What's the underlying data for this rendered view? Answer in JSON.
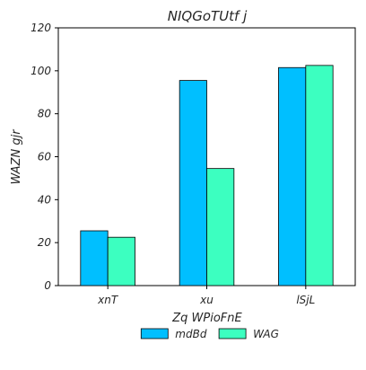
{
  "chart_data": {
    "type": "bar",
    "title": "NIQGoTUtf j",
    "xlabel": "Zq WPioFnE",
    "ylabel": "WAZN gjr",
    "categories": [
      "xnT",
      "xu",
      "lSjL"
    ],
    "series": [
      {
        "name": "mdBd",
        "values": [
          25.5,
          95.5,
          101.5
        ],
        "color": "#00BFFF"
      },
      {
        "name": "WAG",
        "values": [
          22.5,
          54.5,
          102.5
        ],
        "color": "#3CFFC0"
      }
    ],
    "ylim": [
      0,
      120
    ],
    "yticks": [
      0,
      20,
      40,
      60,
      80,
      100,
      120
    ],
    "grid": false,
    "legend_position": "bottom-center"
  }
}
